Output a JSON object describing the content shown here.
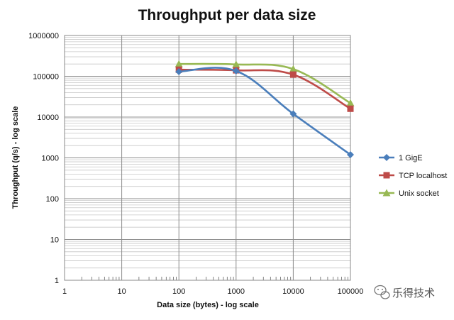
{
  "chart_data": {
    "type": "line",
    "title": "Throughput per data size",
    "xlabel": "Data size (bytes) - log scale",
    "ylabel": "Throughput (q/s) - log scale",
    "xscale": "log",
    "yscale": "log",
    "xlim": [
      1,
      100000
    ],
    "ylim": [
      1,
      1000000
    ],
    "grid": true,
    "legend_position": "right",
    "x_ticks": [
      "1",
      "10",
      "100",
      "1000",
      "10000",
      "100000"
    ],
    "y_ticks": [
      "1",
      "10",
      "100",
      "1000",
      "10000",
      "100000",
      "1000000"
    ],
    "series": [
      {
        "name": "1 GigE",
        "color": "#4a7ebb",
        "marker": "diamond",
        "x": [
          100,
          1000,
          10000,
          100000
        ],
        "y": [
          130000,
          135000,
          12000,
          1200
        ]
      },
      {
        "name": "TCP localhost",
        "color": "#be4b48",
        "marker": "square",
        "x": [
          100,
          1000,
          10000,
          100000
        ],
        "y": [
          145000,
          140000,
          110000,
          16000
        ]
      },
      {
        "name": "Unix socket",
        "color": "#98b954",
        "marker": "triangle",
        "x": [
          100,
          1000,
          10000,
          100000
        ],
        "y": [
          200000,
          195000,
          150000,
          22000
        ]
      }
    ]
  },
  "watermark": {
    "text": "乐得技术",
    "icon": "wechat-bubble-icon"
  }
}
